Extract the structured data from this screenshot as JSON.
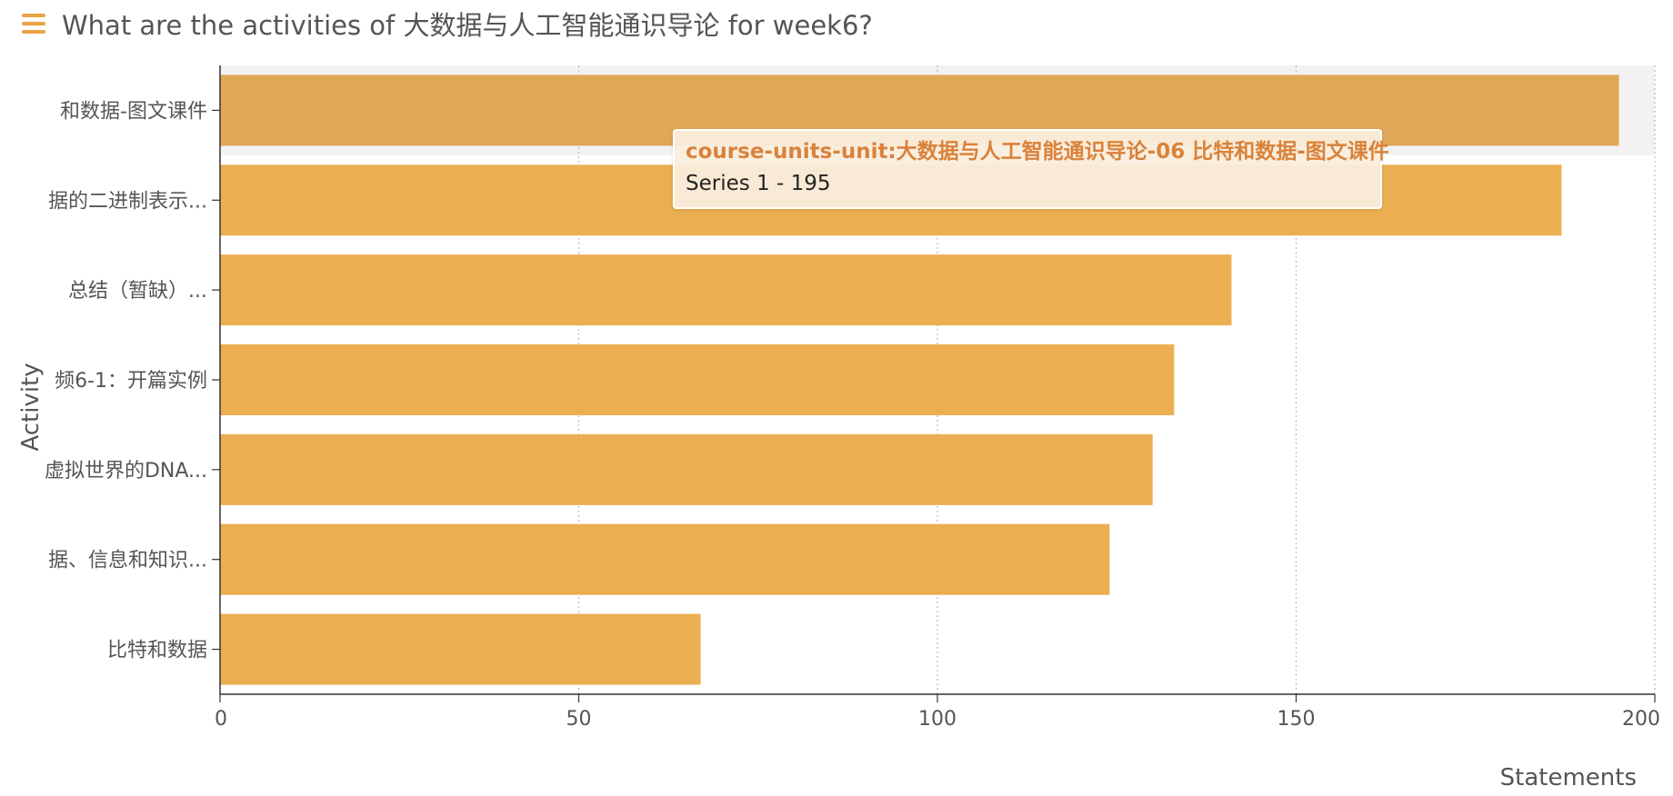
{
  "header": {
    "menu_icon": "hamburger-menu-icon",
    "title": "What are the activities of 大数据与人工智能通识导论 for week6?"
  },
  "tooltip": {
    "title": "course-units-unit:大数据与人工智能通识导论-06 比特和数据-图文课件",
    "series_name": "Series 1",
    "separator": " - ",
    "value": "195"
  },
  "colors": {
    "bar": "#EBAF52",
    "bar_highlight": "#E0A758",
    "hover_band": "#F2F2F2",
    "axis": "#333333",
    "grid": "#BBBBBB",
    "text": "#555555"
  },
  "chart_data": {
    "type": "bar",
    "orientation": "horizontal",
    "xlabel": "Statements",
    "ylabel": "Activity",
    "xlim": [
      0,
      200
    ],
    "xticks": [
      0,
      50,
      100,
      150,
      200
    ],
    "grid": true,
    "highlighted_index": 0,
    "categories": [
      "和数据-图文课件",
      "据的二进制表示...",
      "总结（暂缺）...",
      "频6-1：开篇实例",
      "虚拟世界的DNA...",
      "据、信息和知识...",
      "比特和数据"
    ],
    "series": [
      {
        "name": "Series 1",
        "values": [
          195,
          187,
          141,
          133,
          130,
          124,
          67
        ]
      }
    ]
  }
}
